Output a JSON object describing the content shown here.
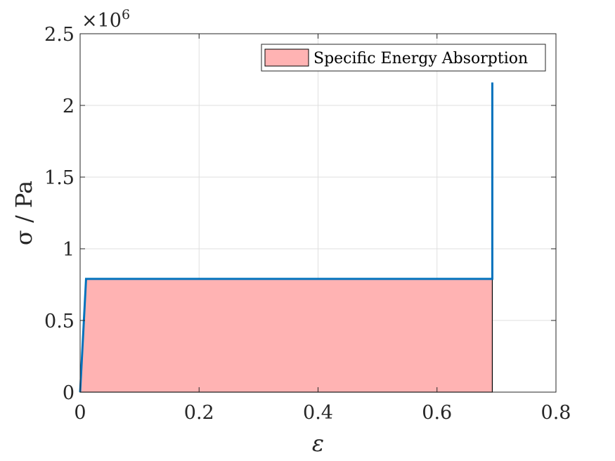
{
  "chart_data": {
    "type": "area",
    "title": "",
    "xlabel": "ε",
    "ylabel": "σ / Pa",
    "y_multiplier_label": "×10",
    "y_multiplier_exponent": "6",
    "xlim": [
      0,
      0.8
    ],
    "ylim": [
      0,
      2500000
    ],
    "x_ticks": [
      0,
      0.2,
      0.4,
      0.6,
      0.8
    ],
    "x_tick_labels": [
      "0",
      "0.2",
      "0.4",
      "0.6",
      "0.8"
    ],
    "y_ticks": [
      0,
      500000,
      1000000,
      1500000,
      2000000,
      2500000
    ],
    "y_tick_labels": [
      "0",
      "0.5",
      "1",
      "1.5",
      "2",
      "2.5"
    ],
    "grid": true,
    "legend_position": "top-right",
    "series": [
      {
        "kind": "area",
        "name": "Specific Energy Absorption",
        "color": "#ffb3b3",
        "edge_color": "#000000",
        "x": [
          0,
          0.01,
          0.693,
          0.693
        ],
        "y": [
          0,
          790000,
          790000,
          0
        ]
      },
      {
        "kind": "line",
        "color": "#0072bd",
        "x": [
          0,
          0.01,
          0.693,
          0.693
        ],
        "y": [
          0,
          790000,
          790000,
          2160000
        ]
      }
    ]
  }
}
